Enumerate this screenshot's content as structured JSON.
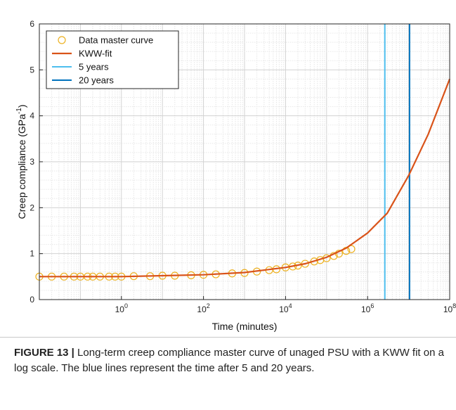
{
  "chart_data": {
    "type": "line",
    "xlabel": "Time (minutes)",
    "ylabel": "Creep compliance (GPa^-1)",
    "x_scale": "log",
    "xlim": [
      0.01,
      100000000
    ],
    "ylim": [
      0,
      6
    ],
    "x_ticks": [
      1,
      100,
      10000,
      1000000,
      100000000
    ],
    "y_ticks": [
      0,
      1,
      2,
      3,
      4,
      5,
      6
    ],
    "grid": true,
    "legend_position": "top-left",
    "series": [
      {
        "name": "Data master curve",
        "style": "markers",
        "color": "#EDB120",
        "x": [
          0.01,
          0.02,
          0.04,
          0.07,
          0.1,
          0.15,
          0.2,
          0.3,
          0.5,
          0.7,
          1,
          2,
          5,
          10,
          20,
          50,
          100,
          200,
          500,
          1000,
          2000,
          4000,
          6000,
          10000,
          15000,
          20000,
          30000,
          50000,
          70000,
          100000,
          150000,
          200000,
          300000,
          400000
        ],
        "y": [
          0.5,
          0.5,
          0.5,
          0.5,
          0.5,
          0.5,
          0.5,
          0.5,
          0.5,
          0.5,
          0.5,
          0.51,
          0.51,
          0.52,
          0.52,
          0.53,
          0.54,
          0.55,
          0.57,
          0.58,
          0.61,
          0.64,
          0.66,
          0.7,
          0.72,
          0.74,
          0.78,
          0.83,
          0.86,
          0.9,
          0.95,
          1.0,
          1.06,
          1.1
        ]
      },
      {
        "name": "KWW-fit",
        "style": "line",
        "color": "#D95319",
        "x": [
          0.01,
          0.1,
          1,
          10,
          100,
          1000,
          10000,
          30000,
          100000,
          300000,
          1000000,
          3000000,
          10000000,
          30000000,
          100000000
        ],
        "y": [
          0.5,
          0.5,
          0.5,
          0.52,
          0.54,
          0.59,
          0.7,
          0.78,
          0.92,
          1.12,
          1.45,
          1.88,
          2.7,
          3.6,
          4.8
        ]
      },
      {
        "name": "5 years",
        "style": "vline",
        "color": "#4DBEEE",
        "x_value": 2628000
      },
      {
        "name": "20 years",
        "style": "vline",
        "color": "#0072BD",
        "x_value": 10512000
      }
    ]
  },
  "caption": {
    "label": "FIGURE 13 |",
    "text": " Long-term creep compliance master curve of unaged PSU with a KWW fit on a log scale. The blue lines represent the time after 5 and 20 years."
  }
}
